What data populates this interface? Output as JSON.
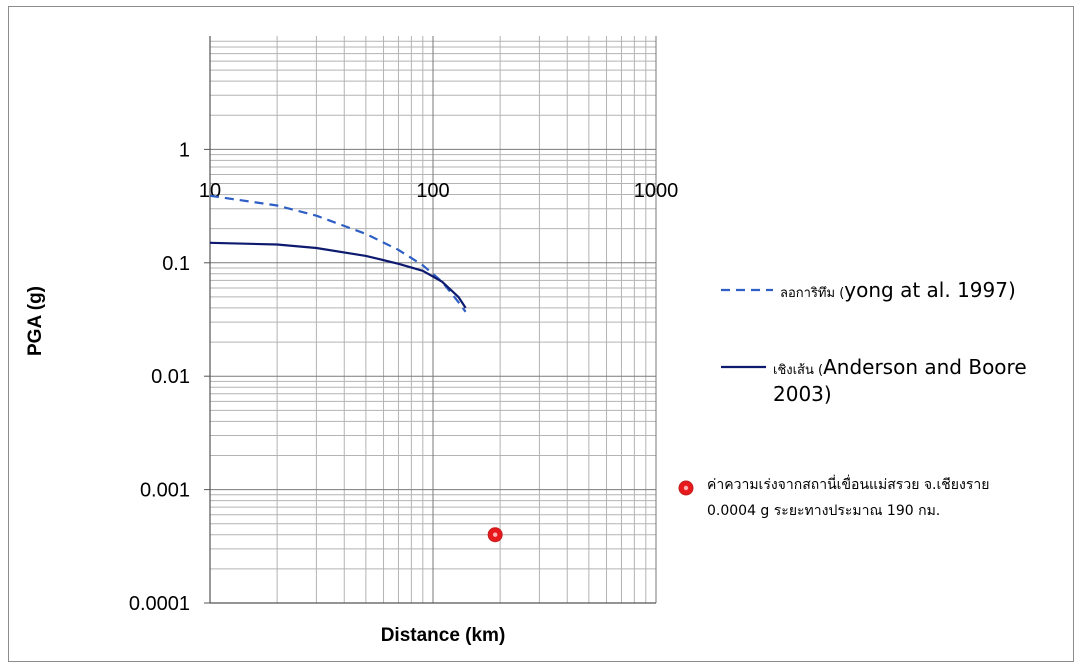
{
  "chart_data": {
    "type": "line",
    "xlabel": "Distance (km)",
    "ylabel": "PGA (g)",
    "x_scale": "log",
    "y_scale": "log",
    "xlim": [
      10,
      1000
    ],
    "ylim": [
      0.0001,
      10
    ],
    "x_ticks": [
      {
        "value": 10,
        "label": "10"
      },
      {
        "value": 100,
        "label": "100"
      },
      {
        "value": 1000,
        "label": "1000"
      }
    ],
    "y_ticks": [
      {
        "value": 1,
        "label": "1"
      },
      {
        "value": 0.1,
        "label": "0.1"
      },
      {
        "value": 0.01,
        "label": "0.01"
      },
      {
        "value": 0.001,
        "label": "0.001"
      },
      {
        "value": 0.0001,
        "label": "0.0001"
      }
    ],
    "grid": true,
    "legend_position": "right",
    "series": [
      {
        "name_thai": "ลอการิทึม (",
        "name_rest": "yong at al. 1997)",
        "style": "dashed",
        "color": "#2f5ec4",
        "x": [
          10,
          20,
          30,
          50,
          70,
          90,
          110,
          130,
          140
        ],
        "y": [
          0.39,
          0.32,
          0.26,
          0.18,
          0.13,
          0.095,
          0.068,
          0.045,
          0.037
        ]
      },
      {
        "name_thai": "เชิงเส้น (",
        "name_rest": "Anderson and Boore 2003)",
        "style": "solid",
        "color": "#0e1a6e",
        "x": [
          10,
          20,
          30,
          50,
          70,
          90,
          110,
          130,
          140
        ],
        "y": [
          0.15,
          0.145,
          0.135,
          0.115,
          0.098,
          0.085,
          0.068,
          0.05,
          0.04
        ]
      },
      {
        "name_line1": "ค่าความเร่งจากสถานี่เขื่อนแม่สรวย จ.เชียงราย",
        "name_line2": "0.0004 g ระยะทางประมาณ 190 กม.",
        "style": "marker",
        "color": "#e8191d",
        "x": [
          190
        ],
        "y": [
          0.0004
        ]
      }
    ]
  }
}
